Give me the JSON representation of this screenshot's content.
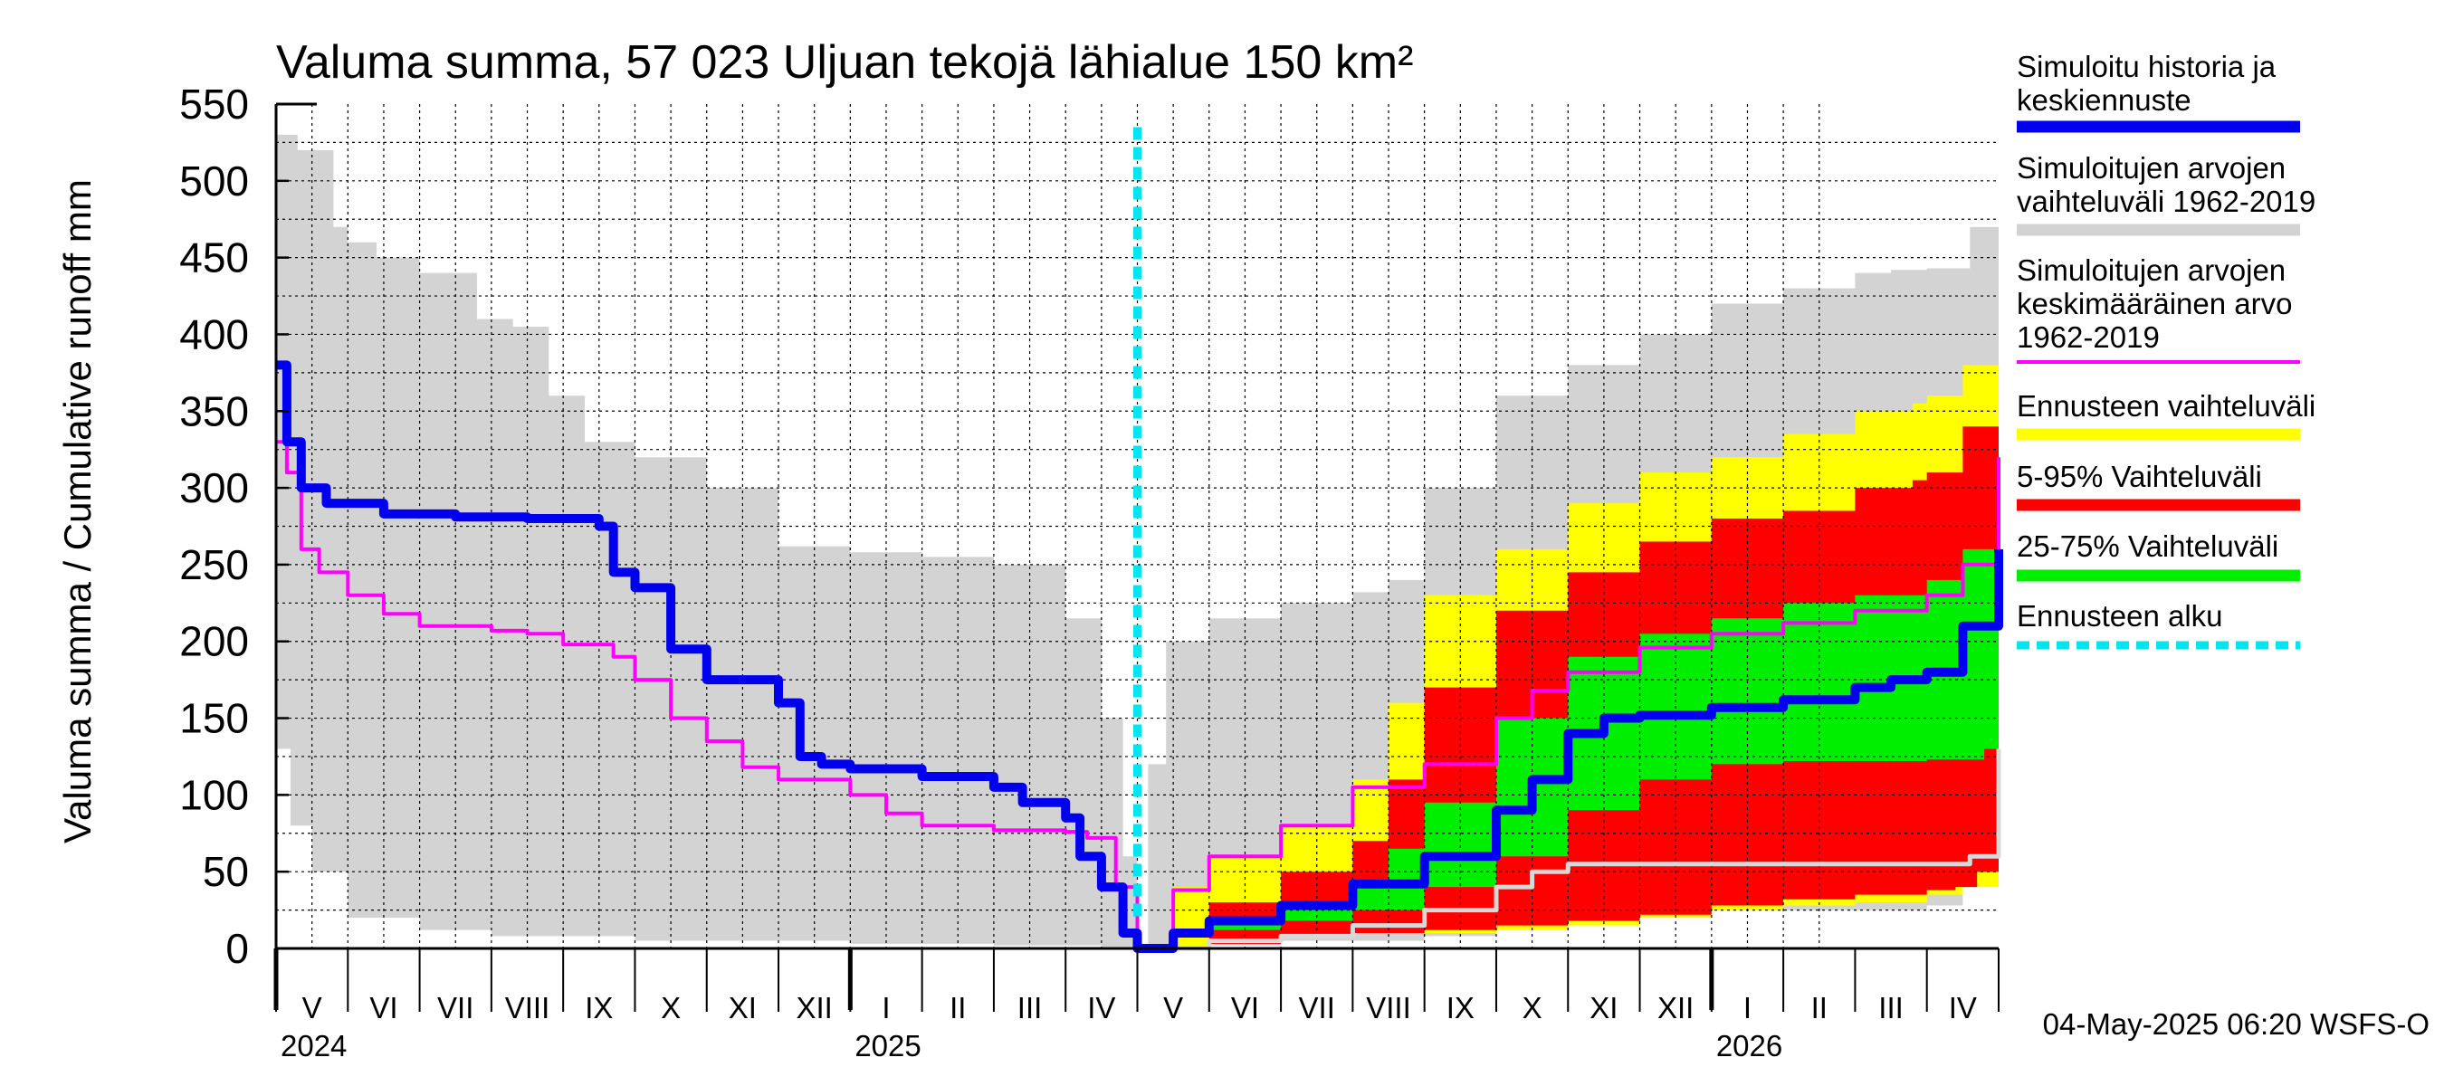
{
  "chart_data": {
    "type": "area",
    "title": "Valuma summa, 57 023 Uljuan tekojä lähialue 150 km²",
    "ylabel": "Valuma summa / Cumulative runoff    mm",
    "ylim": [
      0,
      550
    ],
    "yticks": [
      0,
      50,
      100,
      150,
      200,
      250,
      300,
      350,
      400,
      450,
      500,
      550
    ],
    "x_start": "2024-05-01",
    "x_end": "2026-05-31",
    "forecast_start_month": 12,
    "month_labels": [
      "V",
      "VI",
      "VII",
      "VIII",
      "IX",
      "X",
      "XI",
      "XII",
      "I",
      "II",
      "III",
      "IV",
      "V",
      "VI",
      "VII",
      "VIII",
      "IX",
      "X",
      "XI",
      "XII",
      "I",
      "II",
      "III",
      "IV"
    ],
    "year_labels": [
      {
        "label": "2024",
        "month_index": 0
      },
      {
        "label": "2025",
        "month_index": 8
      },
      {
        "label": "2026",
        "month_index": 20
      }
    ],
    "timestamp": "04-May-2025 06:20 WSFS-O",
    "colors": {
      "hist_range": "#d3d3d3",
      "forecast_range": "#ffff00",
      "p5_95": "#ff0000",
      "p25_75": "#00ee00",
      "simulated": "#0000ee",
      "mean": "#ff00ff",
      "forecast_start": "#00e5ee",
      "grid": "#000000"
    },
    "legend": [
      {
        "key": "simulated",
        "label": "Simuloitu historia ja keskiennuste",
        "lines": [
          "Simuloitu historia ja",
          "keskiennuste"
        ],
        "style": "solid"
      },
      {
        "key": "hist_range",
        "label": "Simuloitujen arvojen vaihteluväli 1962-2019",
        "lines": [
          "Simuloitujen arvojen",
          "vaihteluväli 1962-2019"
        ],
        "style": "solid"
      },
      {
        "key": "mean",
        "label": "Simuloitujen arvojen keskimääräinen arvo 1962-2019",
        "lines": [
          "Simuloitujen arvojen",
          "keskimääräinen arvo",
          "   1962-2019"
        ],
        "style": "thin"
      },
      {
        "key": "forecast_range",
        "label": "Ennusteen vaihteluväli",
        "lines": [
          "Ennusteen vaihteluväli"
        ],
        "style": "solid"
      },
      {
        "key": "p5_95",
        "label": "5-95% Vaihteluväli",
        "lines": [
          "5-95% Vaihteluväli"
        ],
        "style": "solid"
      },
      {
        "key": "p25_75",
        "label": "25-75% Vaihteluväli",
        "lines": [
          "25-75% Vaihteluväli"
        ],
        "style": "solid"
      },
      {
        "key": "forecast_start",
        "label": "Ennusteen alku",
        "lines": [
          "Ennusteen alku"
        ],
        "style": "dashed"
      }
    ],
    "series": {
      "hist_max": {
        "x": [
          0,
          0.3,
          0.8,
          1.0,
          1.4,
          2.0,
          2.8,
          3.3,
          3.8,
          4.3,
          5.0,
          6.0,
          7.0,
          8.0,
          9.0,
          10.0,
          11.0,
          11.5,
          11.8,
          12.0,
          12.15,
          12.4,
          13.0,
          14.0,
          15.0,
          15.5,
          16.0,
          17.0,
          18.0,
          19.0,
          20.0,
          21.0,
          22.0,
          22.5,
          23.0,
          23.6,
          24.0
        ],
        "y": [
          530,
          520,
          470,
          460,
          450,
          440,
          410,
          405,
          360,
          330,
          320,
          300,
          262,
          258,
          255,
          250,
          215,
          150,
          60,
          0,
          120,
          200,
          215,
          225,
          232,
          240,
          300,
          360,
          380,
          400,
          420,
          430,
          440,
          442,
          443,
          470,
          520
        ]
      },
      "hist_min": {
        "x": [
          0,
          0.2,
          0.5,
          1.0,
          2.0,
          3.0,
          5.0,
          8.0,
          10.0,
          11.5,
          12.0,
          12.5,
          14.0,
          16.0,
          17.0,
          18.0,
          19.0,
          20.0,
          23.0,
          23.5,
          24.0
        ],
        "y": [
          130,
          80,
          50,
          20,
          12,
          8,
          5,
          3,
          2,
          1,
          0,
          2,
          5,
          8,
          12,
          20,
          22,
          25,
          28,
          40,
          80
        ]
      },
      "forecast_max": {
        "x": [
          12,
          12.5,
          13,
          14,
          15,
          15.5,
          16,
          17,
          18,
          19,
          20,
          21,
          22,
          22.8,
          23,
          23.5,
          24
        ],
        "y": [
          0,
          40,
          60,
          80,
          110,
          160,
          230,
          260,
          290,
          310,
          320,
          335,
          350,
          355,
          360,
          380,
          420
        ]
      },
      "forecast_min": {
        "x": [
          12,
          13,
          14,
          15,
          16,
          17,
          18,
          19,
          20,
          21,
          22,
          23,
          23.5,
          24
        ],
        "y": [
          0,
          5,
          8,
          10,
          10,
          12,
          15,
          20,
          25,
          28,
          30,
          35,
          40,
          60
        ]
      },
      "p95": {
        "x": [
          12,
          13,
          14,
          15,
          15.5,
          16,
          17,
          18,
          19,
          20,
          21,
          22,
          22.8,
          23,
          23.5,
          24
        ],
        "y": [
          0,
          30,
          50,
          70,
          110,
          170,
          220,
          245,
          265,
          280,
          285,
          300,
          305,
          310,
          340,
          400
        ]
      },
      "p5": {
        "x": [
          12,
          13,
          14,
          15,
          16,
          17,
          18,
          19,
          20,
          21,
          22,
          23,
          23.4,
          23.7,
          24
        ],
        "y": [
          0,
          3,
          7,
          10,
          12,
          15,
          18,
          22,
          28,
          32,
          35,
          38,
          40,
          50,
          125
        ]
      },
      "p75": {
        "x": [
          12,
          13,
          14,
          15,
          15.5,
          16,
          17,
          18,
          19,
          20,
          21,
          22,
          23,
          23.5,
          24
        ],
        "y": [
          0,
          20,
          30,
          45,
          65,
          95,
          150,
          190,
          205,
          215,
          225,
          230,
          240,
          260,
          330
        ]
      },
      "p25": {
        "x": [
          12,
          13,
          14,
          15,
          16,
          17,
          18,
          19,
          20,
          21,
          22,
          23,
          23.5,
          23.8,
          24
        ],
        "y": [
          0,
          12,
          18,
          25,
          40,
          60,
          90,
          110,
          120,
          122,
          122,
          123,
          123,
          130,
          190
        ]
      },
      "simulated": {
        "x": [
          0,
          0.15,
          0.35,
          0.7,
          1.5,
          2.5,
          3.5,
          4.5,
          4.7,
          5.0,
          5.5,
          6.0,
          7.0,
          7.3,
          7.6,
          8.0,
          9.0,
          10.0,
          10.4,
          11.0,
          11.2,
          11.5,
          11.8,
          12.0,
          12.5,
          13.0,
          14.0,
          15.0,
          16.0,
          17.0,
          17.5,
          18.0,
          18.5,
          19.0,
          20.0,
          21.0,
          22.0,
          22.5,
          23.0,
          23.5,
          24.0
        ],
        "y": [
          380,
          330,
          300,
          290,
          283,
          281,
          280,
          275,
          245,
          235,
          195,
          175,
          160,
          125,
          120,
          117,
          112,
          105,
          95,
          85,
          60,
          40,
          10,
          0,
          10,
          18,
          28,
          42,
          60,
          90,
          110,
          140,
          150,
          152,
          157,
          162,
          170,
          175,
          180,
          210,
          260
        ]
      },
      "mean": {
        "x": [
          0,
          0.15,
          0.35,
          0.6,
          1.0,
          1.5,
          2.0,
          3.0,
          3.5,
          4.0,
          4.7,
          5.0,
          5.5,
          6.0,
          6.5,
          7.0,
          8.0,
          8.5,
          9.0,
          10.0,
          11.0,
          11.3,
          11.7,
          12.0,
          12.5,
          13.0,
          14.0,
          15.0,
          16.0,
          17.0,
          17.5,
          18.0,
          19.0,
          20.0,
          21.0,
          22.0,
          23.0,
          23.5,
          24.0
        ],
        "y": [
          330,
          310,
          260,
          245,
          230,
          218,
          210,
          207,
          205,
          198,
          190,
          175,
          150,
          135,
          118,
          110,
          100,
          88,
          80,
          77,
          76,
          72,
          40,
          0,
          38,
          60,
          80,
          105,
          120,
          150,
          168,
          180,
          196,
          205,
          212,
          220,
          230,
          250,
          320
        ]
      },
      "hist_low_line": {
        "x": [
          12,
          13,
          14,
          15,
          16,
          17,
          17.5,
          18,
          19,
          20,
          21,
          22,
          23,
          23.6,
          24
        ],
        "y": [
          0,
          5,
          8,
          15,
          25,
          40,
          50,
          55,
          55,
          55,
          55,
          55,
          55,
          60,
          130
        ]
      }
    }
  }
}
